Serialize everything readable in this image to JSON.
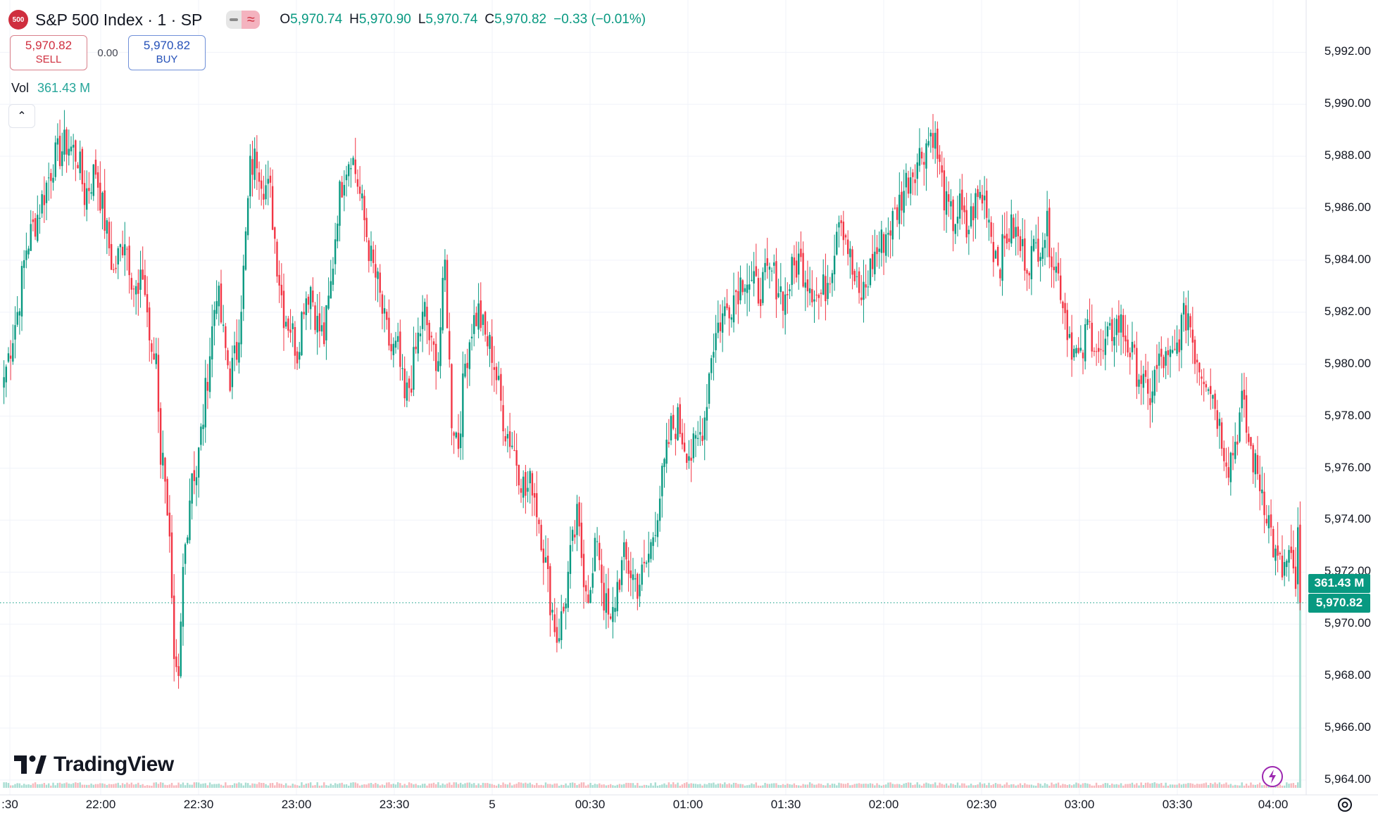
{
  "header": {
    "symbol_logo": "500",
    "symbol": "S&P 500 Index · 1 · SP",
    "ohlc": [
      {
        "key": "O",
        "value": "5,970.74"
      },
      {
        "key": "H",
        "value": "5,970.90"
      },
      {
        "key": "L",
        "value": "5,970.74"
      },
      {
        "key": "C",
        "value": "5,970.82"
      }
    ],
    "change": "−0.33 (−0.01%)"
  },
  "trade": {
    "sell_price": "5,970.82",
    "sell_label": "SELL",
    "spread": "0.00",
    "buy_price": "5,970.82",
    "buy_label": "BUY"
  },
  "volume": {
    "label": "Vol",
    "value": "361.43 M"
  },
  "collapse_glyph": "⌃",
  "brand": {
    "name": "TradingView"
  },
  "tags": {
    "volume": "361.43 M",
    "price": "5,970.82"
  },
  "colors": {
    "up": "#089981",
    "down": "#f23645",
    "accent": "#089981"
  },
  "chart_data": {
    "type": "candlestick",
    "x_tick_labels": [
      ":30",
      "22:00",
      "22:30",
      "23:00",
      "23:30",
      "5",
      "00:30",
      "01:00",
      "01:30",
      "02:00",
      "02:30",
      "03:00",
      "03:30",
      "04:00"
    ],
    "y_tick_labels": [
      "5,992.00",
      "5,990.00",
      "5,988.00",
      "5,986.00",
      "5,984.00",
      "5,982.00",
      "5,980.00",
      "5,978.00",
      "5,976.00",
      "5,974.00",
      "5,972.00",
      "5,970.00",
      "5,968.00",
      "5,966.00",
      "5,964.00"
    ],
    "ylim": [
      5963.7,
      5993.2
    ],
    "last_price": 5970.82,
    "grid": true,
    "close_path": [
      [
        0,
        5979.5
      ],
      [
        6,
        5982
      ],
      [
        10,
        5984.5
      ],
      [
        16,
        5986
      ],
      [
        22,
        5987.8
      ],
      [
        28,
        5988.5
      ],
      [
        33,
        5988
      ],
      [
        36,
        5986.5
      ],
      [
        41,
        5987.5
      ],
      [
        46,
        5985
      ],
      [
        49,
        5983.5
      ],
      [
        54,
        5985
      ],
      [
        58,
        5983
      ],
      [
        60,
        5982.5
      ],
      [
        62,
        5983.5
      ],
      [
        64,
        5982
      ],
      [
        66,
        5980
      ],
      [
        68,
        5980.5
      ],
      [
        70,
        5976.5
      ],
      [
        72,
        5976
      ],
      [
        74,
        5973
      ],
      [
        76,
        5968
      ],
      [
        78,
        5967.5
      ],
      [
        80,
        5972
      ],
      [
        84,
        5976
      ],
      [
        86,
        5975.8
      ],
      [
        89,
        5978
      ],
      [
        92,
        5980.5
      ],
      [
        95,
        5983
      ],
      [
        98,
        5981
      ],
      [
        101,
        5979.5
      ],
      [
        104,
        5980.5
      ],
      [
        107,
        5983.5
      ],
      [
        110,
        5987.5
      ],
      [
        113,
        5988
      ],
      [
        116,
        5987
      ],
      [
        119,
        5986.5
      ],
      [
        122,
        5984
      ],
      [
        125,
        5982
      ],
      [
        128,
        5981.5
      ],
      [
        131,
        5980.5
      ],
      [
        134,
        5982.5
      ],
      [
        137,
        5983
      ],
      [
        140,
        5981.5
      ],
      [
        143,
        5981
      ],
      [
        146,
        5983
      ],
      [
        149,
        5986
      ],
      [
        152,
        5987.5
      ],
      [
        155,
        5988.2
      ],
      [
        158,
        5987
      ],
      [
        161,
        5985.5
      ],
      [
        164,
        5984
      ],
      [
        167,
        5983
      ],
      [
        170,
        5981.5
      ],
      [
        173,
        5980.5
      ],
      [
        176,
        5980.5
      ],
      [
        179,
        5978.5
      ],
      [
        182,
        5979.5
      ],
      [
        185,
        5981
      ],
      [
        188,
        5982
      ],
      [
        191,
        5980.5
      ],
      [
        194,
        5980.3
      ],
      [
        197,
        5983.8
      ],
      [
        200,
        5978
      ],
      [
        203,
        5977
      ],
      [
        206,
        5980
      ],
      [
        209,
        5981.5
      ],
      [
        212,
        5982
      ],
      [
        215,
        5981
      ],
      [
        218,
        5980.5
      ],
      [
        221,
        5979
      ],
      [
        224,
        5977.5
      ],
      [
        227,
        5977
      ],
      [
        230,
        5976
      ],
      [
        233,
        5975
      ],
      [
        236,
        5975.5
      ],
      [
        240,
        5973.5
      ],
      [
        244,
        5971
      ],
      [
        247,
        5969.5
      ],
      [
        250,
        5970.5
      ],
      [
        253,
        5972.5
      ],
      [
        256,
        5974
      ],
      [
        259,
        5972
      ],
      [
        262,
        5971
      ],
      [
        265,
        5973.5
      ],
      [
        268,
        5971
      ],
      [
        271,
        5969.8
      ],
      [
        274,
        5971.5
      ],
      [
        277,
        5972.5
      ],
      [
        280,
        5972
      ],
      [
        283,
        5971.5
      ],
      [
        286,
        5972
      ],
      [
        289,
        5973
      ],
      [
        292,
        5974.5
      ],
      [
        295,
        5976
      ],
      [
        298,
        5977.5
      ],
      [
        301,
        5977.8
      ],
      [
        304,
        5977
      ],
      [
        307,
        5976.5
      ],
      [
        310,
        5977
      ],
      [
        313,
        5978
      ],
      [
        316,
        5980.5
      ],
      [
        319,
        5981.5
      ],
      [
        322,
        5982
      ],
      [
        325,
        5982.5
      ],
      [
        328,
        5983
      ],
      [
        331,
        5983.5
      ],
      [
        334,
        5983
      ],
      [
        337,
        5982.8
      ],
      [
        340,
        5983.2
      ],
      [
        343,
        5983.5
      ],
      [
        346,
        5983
      ],
      [
        349,
        5982.5
      ],
      [
        352,
        5983.5
      ],
      [
        355,
        5984
      ],
      [
        358,
        5983.5
      ],
      [
        361,
        5983
      ],
      [
        364,
        5982.5
      ],
      [
        367,
        5983
      ],
      [
        370,
        5984
      ],
      [
        373,
        5986
      ],
      [
        376,
        5985
      ],
      [
        379,
        5983.5
      ],
      [
        382,
        5982.5
      ],
      [
        385,
        5983
      ],
      [
        388,
        5984
      ],
      [
        391,
        5984.5
      ],
      [
        394,
        5985
      ],
      [
        397,
        5985.5
      ],
      [
        400,
        5986.2
      ],
      [
        403,
        5987
      ],
      [
        406,
        5987.5
      ],
      [
        409,
        5988
      ],
      [
        412,
        5988.5
      ],
      [
        415,
        5989
      ],
      [
        418,
        5987.5
      ],
      [
        421,
        5986
      ],
      [
        424,
        5985.5
      ],
      [
        427,
        5986
      ],
      [
        430,
        5985
      ],
      [
        433,
        5986
      ],
      [
        436,
        5986.5
      ],
      [
        439,
        5986.2
      ],
      [
        442,
        5984.5
      ],
      [
        445,
        5984
      ],
      [
        448,
        5985
      ],
      [
        451,
        5985.2
      ],
      [
        454,
        5984.5
      ],
      [
        457,
        5984
      ],
      [
        460,
        5984.3
      ],
      [
        463,
        5984.8
      ],
      [
        466,
        5985.2
      ],
      [
        469,
        5984
      ],
      [
        472,
        5983
      ],
      [
        475,
        5981.5
      ],
      [
        478,
        5980.5
      ],
      [
        481,
        5980
      ],
      [
        484,
        5981.5
      ],
      [
        487,
        5981
      ],
      [
        490,
        5980.2
      ],
      [
        493,
        5980.8
      ],
      [
        496,
        5981.5
      ],
      [
        499,
        5981.5
      ],
      [
        502,
        5980.8
      ],
      [
        505,
        5980
      ],
      [
        508,
        5979.5
      ],
      [
        511,
        5978.5
      ],
      [
        514,
        5979.5
      ],
      [
        517,
        5980.2
      ],
      [
        520,
        5980
      ],
      [
        523,
        5980.3
      ],
      [
        526,
        5981.5
      ],
      [
        529,
        5982
      ],
      [
        532,
        5980.5
      ],
      [
        535,
        5979.8
      ],
      [
        538,
        5979.5
      ],
      [
        541,
        5978.5
      ],
      [
        544,
        5977.2
      ],
      [
        547,
        5976.2
      ],
      [
        550,
        5977
      ],
      [
        553,
        5978.5
      ],
      [
        556,
        5977
      ],
      [
        559,
        5976
      ],
      [
        562,
        5975.2
      ],
      [
        565,
        5974
      ],
      [
        568,
        5972.5
      ],
      [
        571,
        5972
      ],
      [
        574,
        5972.5
      ],
      [
        577,
        5971.5
      ],
      [
        578,
        5973.2
      ],
      [
        579,
        5970.82
      ]
    ],
    "volume_spike_last": true
  }
}
